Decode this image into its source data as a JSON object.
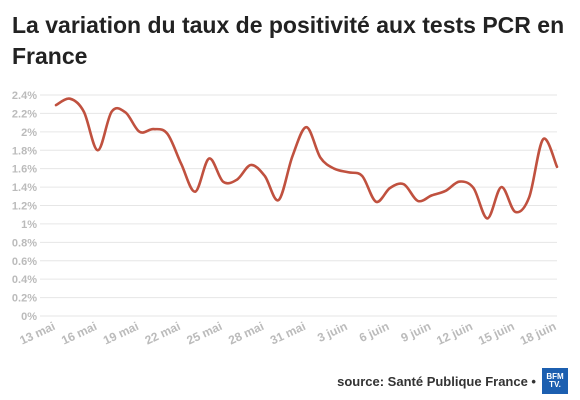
{
  "title": "La variation du taux de positivité aux tests PCR en France",
  "source": "source: Santé Publique France •",
  "logo": {
    "line1": "BFM",
    "line2": "TV."
  },
  "colors": {
    "line": "#c0513f",
    "grid": "#e6e6e6",
    "tick": "#bbbbbb",
    "logo_bg": "#1c5fb0"
  },
  "chart_data": {
    "type": "line",
    "title": "La variation du taux de positivité aux tests PCR en France",
    "xlabel": "",
    "ylabel": "",
    "ylim": [
      0,
      2.4
    ],
    "yticks": [
      0,
      0.2,
      0.4,
      0.6,
      0.8,
      1,
      1.2,
      1.4,
      1.6,
      1.8,
      2,
      2.2,
      2.4
    ],
    "ytick_labels": [
      "0%",
      "0.2%",
      "0.4%",
      "0.6%",
      "0.8%",
      "1%",
      "1.2%",
      "1.4%",
      "1.6%",
      "1.8%",
      "2%",
      "2.2%",
      "2.4%"
    ],
    "xtick_labels": [
      "13 mai",
      "16 mai",
      "19 mai",
      "22 mai",
      "25 mai",
      "28 mai",
      "31 mai",
      "3 juin",
      "6 juin",
      "9 juin",
      "12 juin",
      "15 juin",
      "18 juin"
    ],
    "x": [
      "13 mai",
      "14 mai",
      "15 mai",
      "16 mai",
      "17 mai",
      "18 mai",
      "19 mai",
      "20 mai",
      "21 mai",
      "22 mai",
      "23 mai",
      "24 mai",
      "25 mai",
      "26 mai",
      "27 mai",
      "28 mai",
      "29 mai",
      "30 mai",
      "31 mai",
      "1 juin",
      "2 juin",
      "3 juin",
      "4 juin",
      "5 juin",
      "6 juin",
      "7 juin",
      "8 juin",
      "9 juin",
      "10 juin",
      "11 juin",
      "12 juin",
      "13 juin",
      "14 juin",
      "15 juin",
      "16 juin",
      "17 juin",
      "18 juin"
    ],
    "series": [
      {
        "values": [
          2.29,
          2.36,
          2.22,
          1.8,
          2.22,
          2.21,
          2.0,
          2.03,
          1.98,
          1.65,
          1.35,
          1.71,
          1.46,
          1.48,
          1.64,
          1.52,
          1.26,
          1.74,
          2.05,
          1.72,
          1.6,
          1.56,
          1.52,
          1.24,
          1.39,
          1.43,
          1.25,
          1.31,
          1.36,
          1.46,
          1.39,
          1.06,
          1.4,
          1.13,
          1.29,
          1.92,
          1.62
        ]
      }
    ],
    "grid": true,
    "legend": "none"
  }
}
